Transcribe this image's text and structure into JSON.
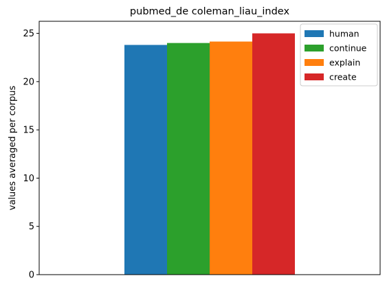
{
  "chart_data": {
    "type": "bar",
    "title": "pubmed_de coleman_liau_index",
    "xlabel": "",
    "ylabel": "values averaged per corpus",
    "categories": [
      ""
    ],
    "series": [
      {
        "name": "human",
        "values": [
          23.8
        ],
        "color": "#1f77b4"
      },
      {
        "name": "continue",
        "values": [
          24.0
        ],
        "color": "#2ca02c"
      },
      {
        "name": "explain",
        "values": [
          24.15
        ],
        "color": "#ff7f0e"
      },
      {
        "name": "create",
        "values": [
          25.0
        ],
        "color": "#d62728"
      }
    ],
    "ylim": [
      0,
      26.25
    ],
    "yticks": [
      0,
      5,
      10,
      15,
      20,
      25
    ],
    "grid": false,
    "legend_position": "top-right"
  }
}
